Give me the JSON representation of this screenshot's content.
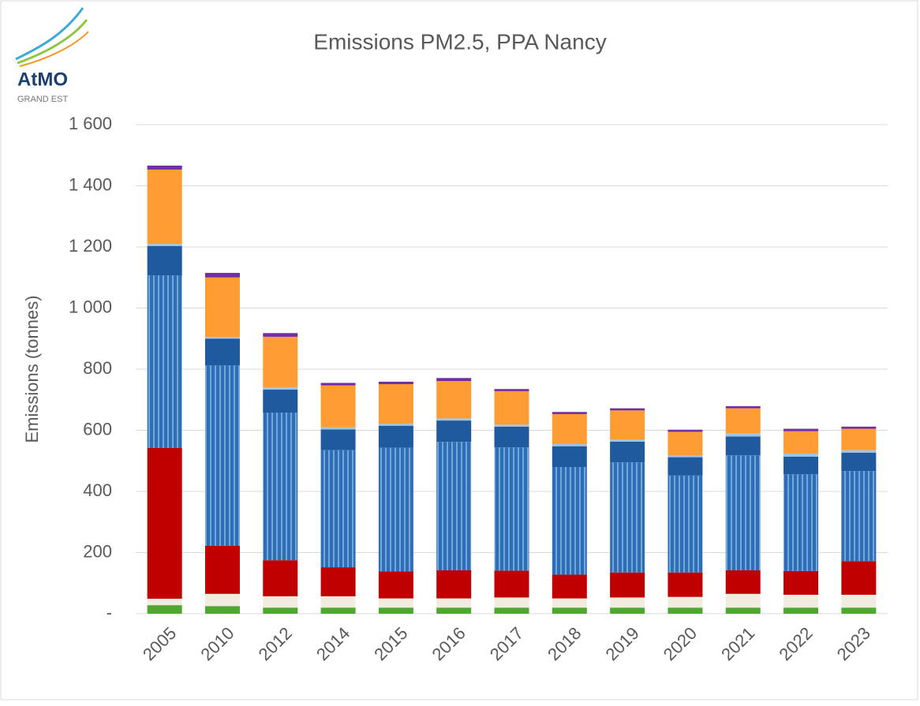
{
  "logo": {
    "name": "AtMO",
    "subtitle": "GRAND EST"
  },
  "chart_data": {
    "type": "stacked_bar",
    "title": "Emissions PM2.5, PPA Nancy",
    "y_label": "Emissions (tonnes)",
    "categories": [
      "2005",
      "2010",
      "2012",
      "2014",
      "2015",
      "2016",
      "2017",
      "2018",
      "2019",
      "2020",
      "2021",
      "2022",
      "2023"
    ],
    "series": [
      {
        "color": "#4ea72e",
        "values": [
          28,
          25,
          20,
          20,
          20,
          20,
          20,
          20,
          20,
          20,
          20,
          20,
          20
        ]
      },
      {
        "color": "#f2ece0",
        "values": [
          21,
          40,
          37,
          37,
          30,
          30,
          33,
          30,
          33,
          35,
          45,
          42,
          42
        ]
      },
      {
        "color": "#c00000",
        "values": [
          493,
          157,
          118,
          95,
          88,
          92,
          88,
          78,
          82,
          80,
          77,
          78,
          110
        ]
      },
      {
        "color": "#2f6db5",
        "pattern": "vertical-stripes",
        "pattern_color": "#6fa8dc",
        "values": [
          565,
          590,
          483,
          383,
          405,
          420,
          403,
          352,
          360,
          317,
          376,
          316,
          295
        ]
      },
      {
        "color": "#1f5a9e",
        "values": [
          96,
          88,
          75,
          68,
          72,
          70,
          68,
          68,
          68,
          60,
          62,
          58,
          60
        ]
      },
      {
        "color": "#9dc3e6",
        "values": [
          7,
          5,
          8,
          7,
          6,
          7,
          7,
          7,
          7,
          5,
          10,
          10,
          8
        ]
      },
      {
        "color": "#ff9c33",
        "values": [
          243,
          195,
          165,
          137,
          130,
          122,
          109,
          98,
          95,
          78,
          82,
          73,
          70
        ]
      },
      {
        "color": "#7030a0",
        "values": [
          13,
          15,
          12,
          8,
          8,
          10,
          7,
          7,
          7,
          7,
          7,
          8,
          7
        ]
      }
    ],
    "ylim": [
      0,
      1600
    ],
    "yticks": [
      {
        "value": 0,
        "label": "-"
      },
      200,
      400,
      600,
      800,
      {
        "value": 1000,
        "label": "1 000"
      },
      {
        "value": 1200,
        "label": "1 200"
      },
      {
        "value": 1400,
        "label": "1 400"
      },
      {
        "value": 1600,
        "label": "1 600"
      }
    ],
    "grid": true
  }
}
